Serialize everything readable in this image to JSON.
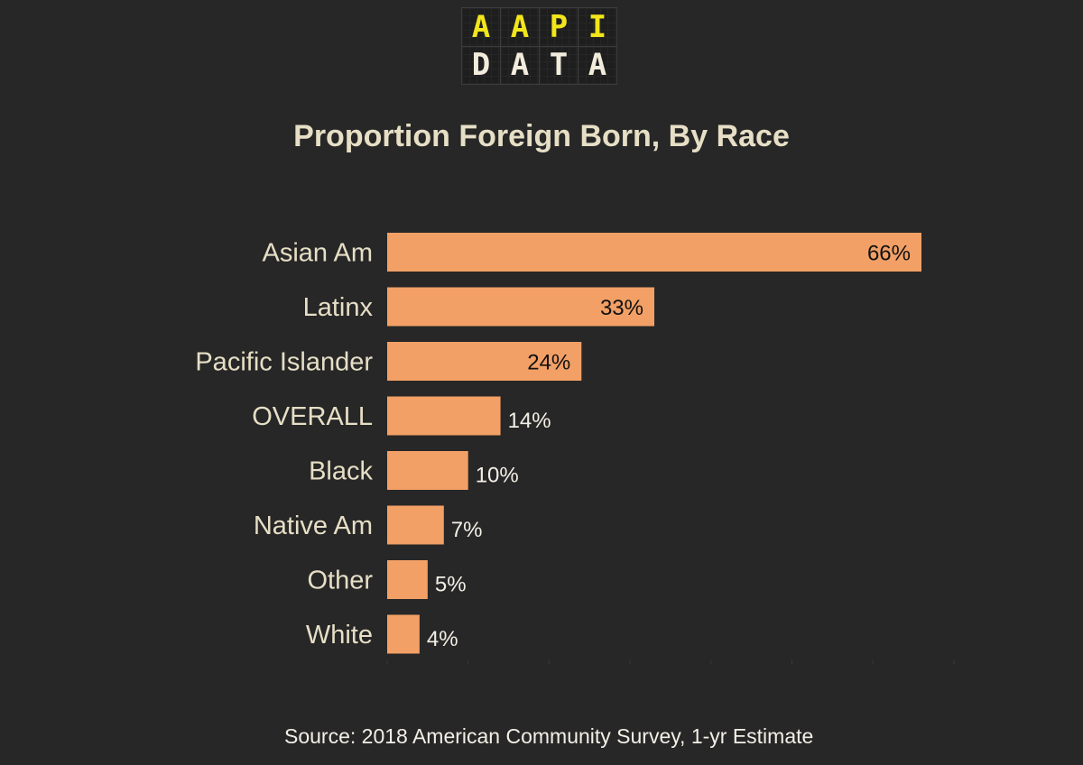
{
  "logo": {
    "top": [
      "A",
      "A",
      "P",
      "I"
    ],
    "bottom": [
      "D",
      "A",
      "T",
      "A"
    ]
  },
  "source": "Source: 2018 American Community Survey, 1-yr Estimate",
  "colors": {
    "background": "#282727",
    "bar": "#f2a066",
    "title": "#e6dfc6",
    "logo_top": "#f2e51a"
  },
  "chart_data": {
    "type": "bar",
    "orientation": "horizontal",
    "title": "Proportion Foreign Born, By Race",
    "categories": [
      "Asian Am",
      "Latinx",
      "Pacific Islander",
      "OVERALL",
      "Black",
      "Native Am",
      "Other",
      "White"
    ],
    "values": [
      66,
      33,
      24,
      14,
      10,
      7,
      5,
      4
    ],
    "value_labels": [
      "66%",
      "33%",
      "24%",
      "14%",
      "10%",
      "7%",
      "5%",
      "4%"
    ],
    "unit": "%",
    "xlim": [
      0,
      70
    ],
    "grid": false,
    "legend": "none"
  }
}
